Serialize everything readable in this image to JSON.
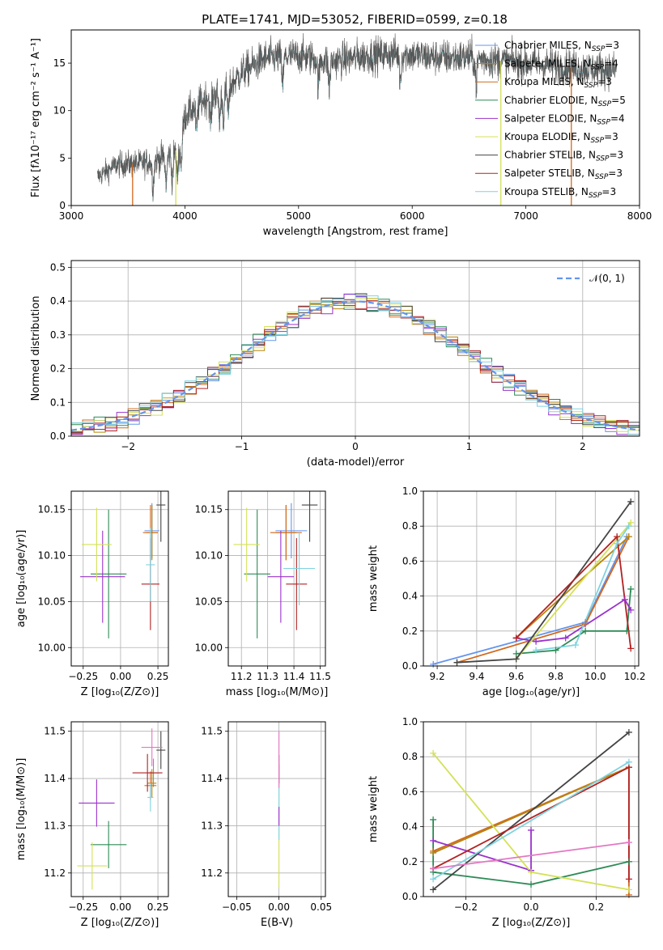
{
  "figure": {
    "title": "PLATE=1741, MJD=53052, FIBERID=0599, z=0.18"
  },
  "series": [
    {
      "name": "Chabrier MILES, N",
      "sub": "SSP",
      "suffix": "=3",
      "color": "#6495ed"
    },
    {
      "name": "Salpeter MILES, N",
      "sub": "SSP",
      "suffix": "=4",
      "color": "#b8860b"
    },
    {
      "name": "Kroupa MILES, N",
      "sub": "SSP",
      "suffix": "=3",
      "color": "#d2691e"
    },
    {
      "name": "Chabrier ELODIE, N",
      "sub": "SSP",
      "suffix": "=5",
      "color": "#2e8b57"
    },
    {
      "name": "Salpeter ELODIE, N",
      "sub": "SSP",
      "suffix": "=4",
      "color": "#9932cc"
    },
    {
      "name": "Kroupa ELODIE, N",
      "sub": "SSP",
      "suffix": "=3",
      "color": "#d4e157"
    },
    {
      "name": "Chabrier STELIB, N",
      "sub": "SSP",
      "suffix": "=3",
      "color": "#444444"
    },
    {
      "name": "Salpeter STELIB, N",
      "sub": "SSP",
      "suffix": "=3",
      "color": "#b22222"
    },
    {
      "name": "Kroupa STELIB, N",
      "sub": "SSP",
      "suffix": "=3",
      "color": "#7fd3e0"
    }
  ],
  "chart_data": [
    {
      "id": "spectrum",
      "type": "line",
      "xlabel": "wavelength [Angstrom, rest frame]",
      "ylabel": "Flux [fλ10⁻¹⁷ erg cm⁻² s⁻¹ A⁻¹]",
      "xlim": [
        3000,
        8000
      ],
      "ylim": [
        0,
        18.5
      ],
      "xticks": [
        3000,
        4000,
        5000,
        6000,
        7000,
        8000
      ],
      "yticks": [
        0,
        5,
        10,
        15
      ],
      "grid": false,
      "legend": "top-right",
      "spectrum_range": [
        3230,
        7800
      ],
      "continuum": [
        [
          3230,
          3.0
        ],
        [
          3400,
          4.3
        ],
        [
          3600,
          4.4
        ],
        [
          3800,
          5.0
        ],
        [
          3950,
          6.0
        ],
        [
          4000,
          9.5
        ],
        [
          4200,
          11.5
        ],
        [
          4350,
          12.0
        ],
        [
          4500,
          14.0
        ],
        [
          4700,
          15.5
        ],
        [
          5000,
          15.8
        ],
        [
          5300,
          15.2
        ],
        [
          5600,
          15.8
        ],
        [
          5900,
          16.0
        ],
        [
          6200,
          15.6
        ],
        [
          6500,
          15.6
        ],
        [
          6800,
          15.2
        ],
        [
          7200,
          14.8
        ],
        [
          7500,
          14.5
        ],
        [
          7800,
          14.3
        ]
      ],
      "model_drops": [
        {
          "x": 3540,
          "color": "#d2691e"
        },
        {
          "x": 3920,
          "color": "#d4e157"
        },
        {
          "x": 6780,
          "color": "#d4e157"
        },
        {
          "x": 7400,
          "color": "#d2691e"
        }
      ]
    },
    {
      "id": "residuals",
      "type": "histogram",
      "xlabel": "(data-model)/error",
      "ylabel": "Normed distribution",
      "xlim": [
        -2.5,
        2.5
      ],
      "ylim": [
        0,
        0.52
      ],
      "xticks": [
        -2,
        -1,
        0,
        1,
        2
      ],
      "yticks": [
        0.0,
        0.1,
        0.2,
        0.3,
        0.4,
        0.5
      ],
      "grid": true,
      "legend": "top-right",
      "reference_label": "𝒩(0, 1)",
      "reference_color": "#6495ed",
      "bin_width": 0.1
    },
    {
      "id": "age-vs-Z",
      "type": "errorbar",
      "xlabel": "Z [log₁₀(Z/Z⊙)]",
      "ylabel": "age  [log₁₀(age/yr)]",
      "xlim": [
        -0.33,
        0.32
      ],
      "ylim": [
        9.98,
        10.17
      ],
      "xticks": [
        -0.25,
        0.0,
        0.25
      ],
      "xticklabels": [
        "−0.25",
        "0.00",
        "0.25"
      ],
      "yticks": [
        10.0,
        10.05,
        10.1,
        10.15
      ],
      "yticklabels": [
        "10.00",
        "10.05",
        "10.10",
        "10.15"
      ],
      "grid": true,
      "points": [
        {
          "s": 0,
          "x": 0.21,
          "xerr": 0.05,
          "y": 10.127,
          "yerr": 0.03
        },
        {
          "s": 1,
          "x": 0.21,
          "xerr": 0.04,
          "y": 10.125,
          "yerr": 0.03
        },
        {
          "s": 2,
          "x": 0.2,
          "xerr": 0.05,
          "y": 10.125,
          "yerr": 0.03
        },
        {
          "s": 3,
          "x": -0.08,
          "xerr": 0.12,
          "y": 10.08,
          "yerr": 0.07
        },
        {
          "s": 4,
          "x": -0.12,
          "xerr": 0.15,
          "y": 10.077,
          "yerr": 0.05
        },
        {
          "s": 5,
          "x": -0.16,
          "xerr": 0.1,
          "y": 10.112,
          "yerr": 0.04
        },
        {
          "s": 6,
          "x": 0.27,
          "xerr": 0.03,
          "y": 10.155,
          "yerr": 0.04
        },
        {
          "s": 7,
          "x": 0.2,
          "xerr": 0.06,
          "y": 10.069,
          "yerr": 0.05
        },
        {
          "s": 8,
          "x": 0.2,
          "xerr": 0.03,
          "y": 10.09,
          "yerr": 0.04
        }
      ]
    },
    {
      "id": "age-vs-mass",
      "type": "errorbar",
      "xlabel": "mass [log₁₀(M/M⊙)]",
      "ylabel": "",
      "xlim": [
        11.15,
        11.52
      ],
      "ylim": [
        9.98,
        10.17
      ],
      "xticks": [
        11.2,
        11.3,
        11.4,
        11.5
      ],
      "xticklabels": [
        "11.2",
        "11.3",
        "11.4",
        "11.5"
      ],
      "yticks": [
        10.0,
        10.05,
        10.1,
        10.15
      ],
      "yticklabels": [
        "10.00",
        "10.05",
        "10.10",
        "10.15"
      ],
      "grid": true,
      "points": [
        {
          "s": 0,
          "x": 11.39,
          "xerr": 0.06,
          "y": 10.127,
          "yerr": 0.03
        },
        {
          "s": 1,
          "x": 11.37,
          "xerr": 0.04,
          "y": 10.125,
          "yerr": 0.03
        },
        {
          "s": 2,
          "x": 11.37,
          "xerr": 0.06,
          "y": 10.125,
          "yerr": 0.03
        },
        {
          "s": 3,
          "x": 11.26,
          "xerr": 0.05,
          "y": 10.08,
          "yerr": 0.07
        },
        {
          "s": 4,
          "x": 11.35,
          "xerr": 0.05,
          "y": 10.077,
          "yerr": 0.05
        },
        {
          "s": 5,
          "x": 11.22,
          "xerr": 0.05,
          "y": 10.112,
          "yerr": 0.04
        },
        {
          "s": 6,
          "x": 11.46,
          "xerr": 0.03,
          "y": 10.155,
          "yerr": 0.04
        },
        {
          "s": 7,
          "x": 11.41,
          "xerr": 0.04,
          "y": 10.069,
          "yerr": 0.05
        },
        {
          "s": 8,
          "x": 11.42,
          "xerr": 0.06,
          "y": 10.086,
          "yerr": 0.04
        }
      ]
    },
    {
      "id": "weight-vs-age",
      "type": "line",
      "xlabel": "age  [log₁₀(age/yr)]",
      "ylabel": "mass weight",
      "xlim": [
        9.13,
        10.22
      ],
      "ylim": [
        0,
        1
      ],
      "xticks": [
        9.2,
        9.4,
        9.6,
        9.8,
        10.0,
        10.2
      ],
      "xticklabels": [
        "9.2",
        "9.4",
        "9.6",
        "9.8",
        "10.0",
        "10.2"
      ],
      "yticks": [
        0.0,
        0.2,
        0.4,
        0.6,
        0.8,
        1.0
      ],
      "yticklabels": [
        "0.0",
        "0.2",
        "0.4",
        "0.6",
        "0.8",
        "1.0"
      ],
      "grid": true,
      "lines": [
        {
          "s": 0,
          "x": [
            9.18,
            9.95,
            10.16
          ],
          "y": [
            0.01,
            0.25,
            0.74
          ]
        },
        {
          "s": 2,
          "x": [
            9.3,
            9.95,
            10.17
          ],
          "y": [
            0.02,
            0.24,
            0.74
          ]
        },
        {
          "s": 1,
          "x": [
            9.6,
            10.17
          ],
          "y": [
            0.16,
            0.74
          ]
        },
        {
          "s": 3,
          "x": [
            9.6,
            9.8,
            9.95,
            10.16,
            10.18
          ],
          "y": [
            0.07,
            0.09,
            0.2,
            0.2,
            0.44
          ]
        },
        {
          "s": 4,
          "x": [
            9.6,
            9.7,
            9.85,
            10.15,
            10.18
          ],
          "y": [
            0.16,
            0.14,
            0.16,
            0.38,
            0.32
          ]
        },
        {
          "s": 5,
          "x": [
            9.6,
            10.18
          ],
          "y": [
            0.04,
            0.82
          ]
        },
        {
          "s": 6,
          "x": [
            9.3,
            9.6,
            10.18
          ],
          "y": [
            0.02,
            0.04,
            0.94
          ]
        },
        {
          "s": 7,
          "x": [
            9.6,
            10.11,
            10.18
          ],
          "y": [
            0.16,
            0.74,
            0.1
          ]
        },
        {
          "s": 8,
          "x": [
            9.7,
            9.9,
            10.11,
            10.17
          ],
          "y": [
            0.09,
            0.12,
            0.7,
            0.8
          ]
        }
      ]
    },
    {
      "id": "mass-vs-Z",
      "type": "errorbar",
      "xlabel": "Z [log₁₀(Z/Z⊙)]",
      "ylabel": "mass [log₁₀(M/M⊙)]",
      "xlim": [
        -0.33,
        0.32
      ],
      "ylim": [
        11.15,
        11.52
      ],
      "xticks": [
        -0.25,
        0.0,
        0.25
      ],
      "xticklabels": [
        "−0.25",
        "0.00",
        "0.25"
      ],
      "yticks": [
        11.2,
        11.3,
        11.4,
        11.5
      ],
      "yticklabels": [
        "11.2",
        "11.3",
        "11.4",
        "11.5"
      ],
      "grid": true,
      "points": [
        {
          "s": 0,
          "x": 0.22,
          "xerr": 0.04,
          "y": 11.412,
          "yerr": 0.03
        },
        {
          "s": 1,
          "x": 0.21,
          "xerr": 0.03,
          "y": 11.39,
          "yerr": 0.03
        },
        {
          "s": 2,
          "x": 0.2,
          "xerr": 0.04,
          "y": 11.385,
          "yerr": 0.03
        },
        {
          "s": 3,
          "x": -0.08,
          "xerr": 0.12,
          "y": 11.26,
          "yerr": 0.05
        },
        {
          "s": 4,
          "x": -0.16,
          "xerr": 0.12,
          "y": 11.348,
          "yerr": 0.05
        },
        {
          "s": 5,
          "x": -0.19,
          "xerr": 0.1,
          "y": 11.215,
          "yerr": 0.05
        },
        {
          "s": 6,
          "x": 0.27,
          "xerr": 0.03,
          "y": 11.46,
          "yerr": 0.04
        },
        {
          "s": 7,
          "x": 0.18,
          "xerr": 0.1,
          "y": 11.412,
          "yerr": 0.04
        },
        {
          "s": 8,
          "x": 0.2,
          "xerr": 0.02,
          "y": 11.36,
          "yerr": 0.03
        },
        {
          "s": 9,
          "x": 0.21,
          "xerr": 0.07,
          "y": 11.466,
          "yerr": 0.04,
          "color": "#e377c2"
        }
      ]
    },
    {
      "id": "mass-vs-EBV",
      "type": "errorbar",
      "xlabel": "E(B-V)",
      "ylabel": "",
      "xlim": [
        -0.06,
        0.055
      ],
      "ylim": [
        11.15,
        11.52
      ],
      "xticks": [
        -0.05,
        0.0,
        0.05
      ],
      "xticklabels": [
        "−0.05",
        "0.00",
        "0.05"
      ],
      "yticks": [
        11.2,
        11.3,
        11.4,
        11.5
      ],
      "yticklabels": [
        "11.2",
        "11.3",
        "11.4",
        "11.5"
      ],
      "grid": true,
      "points": [
        {
          "s": 5,
          "x": 0.0,
          "xerr": 0,
          "y": 11.3,
          "yerr": 0.13
        },
        {
          "s": 8,
          "x": 0.0,
          "xerr": 0,
          "y": 11.35,
          "yerr": 0.08
        },
        {
          "s": 4,
          "x": 0.0,
          "xerr": 0,
          "y": 11.32,
          "yerr": 0.02
        },
        {
          "s": 7,
          "x": 0.0,
          "xerr": 0,
          "y": 11.42,
          "yerr": 0.03
        },
        {
          "s": 9,
          "x": 0.0,
          "xerr": 0,
          "y": 11.44,
          "yerr": 0.06,
          "color": "#e377c2"
        }
      ]
    },
    {
      "id": "weight-vs-Z",
      "type": "line",
      "xlabel": "Z [log₁₀(Z/Z⊙)]",
      "ylabel": "mass weight",
      "xlim": [
        -0.33,
        0.33
      ],
      "ylim": [
        0,
        1
      ],
      "xticks": [
        -0.2,
        0.0,
        0.2
      ],
      "xticklabels": [
        "−0.2",
        "0.0",
        "0.2"
      ],
      "yticks": [
        0.0,
        0.2,
        0.4,
        0.6,
        0.8,
        1.0
      ],
      "yticklabels": [
        "0.0",
        "0.2",
        "0.4",
        "0.6",
        "0.8",
        "1.0"
      ],
      "grid": true,
      "lines": [
        {
          "s": 0,
          "x": [
            -0.3,
            0.3
          ],
          "y": [
            0.25,
            0.74
          ]
        },
        {
          "s": 2,
          "x": [
            -0.3,
            0.3,
            0.3
          ],
          "y": [
            0.26,
            0.74,
            0.01
          ]
        },
        {
          "s": 1,
          "x": [
            -0.3,
            0.3
          ],
          "y": [
            0.25,
            0.74
          ]
        },
        {
          "s": 3,
          "x": [
            -0.3,
            -0.3,
            0.0,
            0.3
          ],
          "y": [
            0.44,
            0.14,
            0.07,
            0.2
          ]
        },
        {
          "s": 4,
          "x": [
            -0.3,
            0.0,
            0.0,
            0.0
          ],
          "y": [
            0.32,
            0.15,
            0.38,
            0.15
          ]
        },
        {
          "s": 5,
          "x": [
            -0.3,
            0.0,
            0.3
          ],
          "y": [
            0.82,
            0.14,
            0.04
          ]
        },
        {
          "s": 6,
          "x": [
            -0.3,
            0.3
          ],
          "y": [
            0.04,
            0.94
          ]
        },
        {
          "s": 7,
          "x": [
            -0.3,
            0.3,
            0.3
          ],
          "y": [
            0.16,
            0.74,
            0.1
          ]
        },
        {
          "s": 8,
          "x": [
            -0.3,
            0.3
          ],
          "y": [
            0.1,
            0.77
          ]
        },
        {
          "s": 9,
          "x": [
            -0.3,
            0.3
          ],
          "y": [
            0.16,
            0.31
          ],
          "color": "#e377c2"
        }
      ]
    }
  ]
}
